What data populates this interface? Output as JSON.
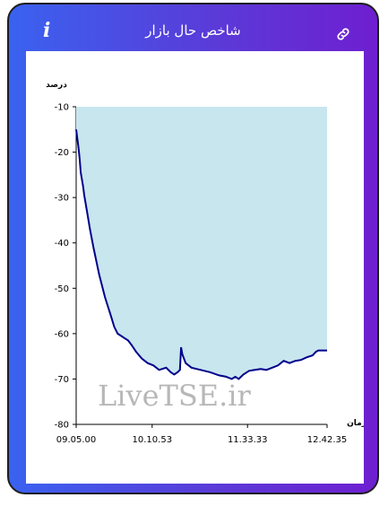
{
  "header": {
    "title": "شاخص حال بازار",
    "info_glyph": "i",
    "info_icon": "info-icon",
    "link_icon": "link-icon"
  },
  "watermark": "LiveTSE.ir",
  "colors": {
    "gradient_start": "#3a62f0",
    "gradient_end": "#6e1fd0",
    "fill": "#c8e6ee",
    "line": "#00008b"
  },
  "chart_data": {
    "type": "area",
    "ylabel": "درصد",
    "xlabel": "زمان",
    "ylim": [
      -80,
      -10
    ],
    "yticks": [
      -10,
      -20,
      -30,
      -40,
      -50,
      -60,
      -70,
      -80
    ],
    "xticks": [
      "09.05.00",
      "10.10.53",
      "11.33.33",
      "12.42.35"
    ],
    "x_minutes_range": [
      0,
      217.6
    ],
    "x_tick_minutes": [
      0,
      65.9,
      148.6,
      217.6
    ],
    "series": [
      {
        "x_minutes": [
          0,
          1,
          2,
          3,
          4,
          5,
          6,
          7,
          8,
          10,
          12,
          15,
          20,
          25,
          30,
          33,
          36,
          39,
          42,
          45,
          48,
          52,
          57,
          62,
          67,
          72,
          78,
          82,
          85,
          88,
          90,
          91,
          92,
          95,
          100,
          108,
          116,
          124,
          130,
          135,
          138,
          141,
          145,
          150,
          155,
          160,
          165,
          170,
          175,
          180,
          185,
          190,
          195,
          200,
          205,
          208,
          210,
          217.6
        ],
        "values": [
          -15,
          -17,
          -19,
          -21.5,
          -24.5,
          -26,
          -27.5,
          -29.5,
          -31,
          -34,
          -37,
          -41,
          -47,
          -52,
          -56,
          -58.5,
          -60,
          -60.5,
          -61,
          -61.5,
          -62.5,
          -64,
          -65.5,
          -66.5,
          -67,
          -68,
          -67.5,
          -68.5,
          -69,
          -68.5,
          -68,
          -63,
          -64.5,
          -66.5,
          -67.5,
          -68,
          -68.5,
          -69.2,
          -69.5,
          -70,
          -69.5,
          -70,
          -69,
          -68.2,
          -68,
          -67.8,
          -68,
          -67.5,
          -67,
          -66,
          -66.5,
          -66,
          -65.8,
          -65.2,
          -64.8,
          -64,
          -63.7,
          -63.7
        ]
      }
    ]
  }
}
